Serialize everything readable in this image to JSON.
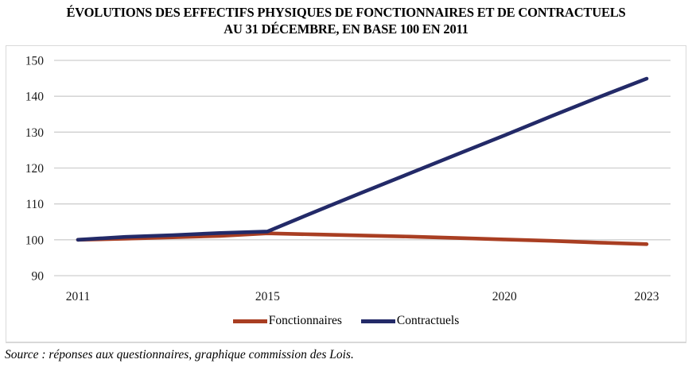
{
  "title": {
    "line1": "ÉVOLUTIONS DES EFFECTIFS PHYSIQUES DE FONCTIONNAIRES ET DE CONTRACTUELS",
    "line2": "AU 31 DÉCEMBRE, EN BASE 100 EN 2011"
  },
  "source": "Source : réponses aux questionnaires, graphique commission des Lois.",
  "chart_data": {
    "type": "line",
    "x": [
      2011,
      2012,
      2013,
      2014,
      2015,
      2016,
      2017,
      2018,
      2019,
      2020,
      2021,
      2022,
      2023
    ],
    "series": [
      {
        "name": "Fonctionnaires",
        "color": "#a93e22",
        "values": [
          100,
          100.3,
          100.7,
          101.1,
          101.8,
          101.5,
          101.2,
          100.9,
          100.5,
          100.1,
          99.7,
          99.2,
          98.8
        ]
      },
      {
        "name": "Contractuels",
        "color": "#232a68",
        "values": [
          100,
          100.8,
          101.3,
          101.9,
          102.3,
          107.8,
          113.2,
          118.5,
          123.8,
          129.1,
          134.5,
          139.8,
          144.9
        ]
      }
    ],
    "ylim": [
      90,
      150
    ],
    "yticks": [
      150,
      140,
      130,
      120,
      110,
      100,
      90
    ],
    "xticks": [
      2011,
      2015,
      2020,
      2023
    ],
    "grid": "horizontal",
    "legend_position": "bottom",
    "colors": {
      "grid": "#cfcfcf",
      "frame_border": "#d9d9d9",
      "text": "#1a1a1a"
    }
  }
}
